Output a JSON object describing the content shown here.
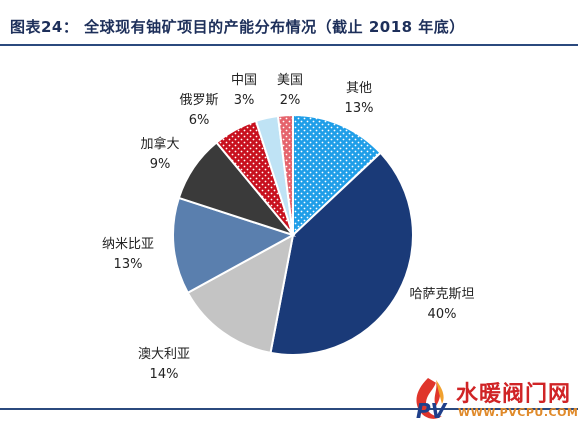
{
  "chart_data": {
    "type": "pie",
    "title": "图表24： 全球现有铀矿项目的产能分布情况（截止 2018 年底）",
    "slices": [
      {
        "label": "其他",
        "value": 13,
        "value_text": "13%",
        "color": "#1f9ee8",
        "pattern": "dots-white"
      },
      {
        "label": "哈萨克斯坦",
        "value": 40,
        "value_text": "40%",
        "color": "#1a3a78",
        "pattern": "none"
      },
      {
        "label": "澳大利亚",
        "value": 14,
        "value_text": "14%",
        "color": "#c4c4c4",
        "pattern": "none"
      },
      {
        "label": "纳米比亚",
        "value": 13,
        "value_text": "13%",
        "color": "#5a7fae",
        "pattern": "none"
      },
      {
        "label": "加拿大",
        "value": 9,
        "value_text": "9%",
        "color": "#3a3a3a",
        "pattern": "none"
      },
      {
        "label": "俄罗斯",
        "value": 6,
        "value_text": "6%",
        "color": "#c8101e",
        "pattern": "dots-white"
      },
      {
        "label": "中国",
        "value": 3,
        "value_text": "3%",
        "color": "#bfe3f5",
        "pattern": "none"
      },
      {
        "label": "美国",
        "value": 2,
        "value_text": "2%",
        "color": "#e5636c",
        "pattern": "dots-white"
      }
    ]
  },
  "watermark": {
    "text": "水暖阀门网",
    "url": "WWW.PVCPU.COM"
  }
}
